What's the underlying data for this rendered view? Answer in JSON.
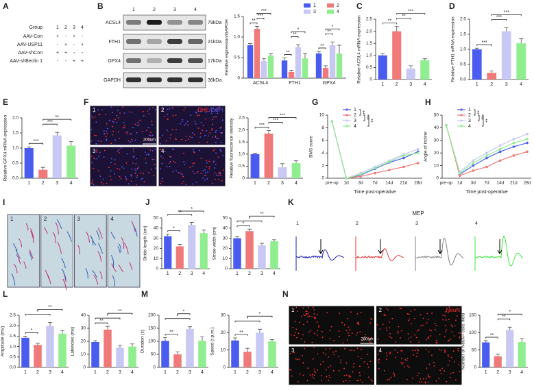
{
  "group_table": {
    "panel": "A",
    "header": [
      "Group",
      "1",
      "2",
      "3",
      "4"
    ],
    "rows": [
      [
        "AAV-Con",
        "+",
        "-",
        "+",
        "-"
      ],
      [
        "AAV-USP11",
        "-",
        "+",
        "-",
        "+"
      ],
      [
        "AAV-shCon",
        "+",
        "+",
        "-",
        "-"
      ],
      [
        "AAV-shBeclin 1",
        "-",
        "-",
        "+",
        "+"
      ]
    ]
  },
  "blot": {
    "panel": "B",
    "lanes": [
      "1",
      "2",
      "3",
      "4"
    ],
    "bands": [
      {
        "name": "ACSL4",
        "size": "79kDa"
      },
      {
        "name": "FTH1",
        "size": "21kDa"
      },
      {
        "name": "GPX4",
        "size": "17kDa"
      },
      {
        "name": "GAPDH",
        "size": "36kDa"
      }
    ]
  },
  "images": [
    {
      "panel": "F",
      "labels": [
        "1",
        "2",
        "3",
        "4"
      ],
      "stain": [
        {
          "text": "DHE",
          "color": "#ff3030"
        },
        {
          "text": "/DAPI",
          "color": "#5a5aff"
        }
      ],
      "scale": "200um",
      "background": "#1c1236",
      "style": "dots"
    },
    {
      "panel": "I",
      "labels": [
        "1",
        "2",
        "3",
        "4"
      ],
      "background": "#c9d9e2",
      "style": "strokes"
    },
    {
      "panel": "N",
      "labels": [
        "1",
        "2",
        "3",
        "4"
      ],
      "stain": [
        {
          "text": "NeuN",
          "color": "#ff3030"
        }
      ],
      "scale": "200um",
      "background": "#0d0d0d",
      "style": "dots"
    }
  ],
  "mep": {
    "panel": "K",
    "title": "MEP",
    "labels": [
      "1",
      "2",
      "3",
      "4"
    ],
    "colors": [
      "#1a1ab8",
      "#e83030",
      "#808080",
      "#3ce63c"
    ]
  },
  "chart_data": [
    {
      "type": "grouped_bar",
      "ylabel": "Relative expression/GAPDH",
      "categories": [
        "ACSL4",
        "FTH1",
        "GPX4"
      ],
      "series": [
        {
          "name": "1",
          "color": "#4a5cf0",
          "values": [
            0.8,
            0.43,
            0.6
          ],
          "errors": [
            0.04,
            0.06,
            0.05
          ]
        },
        {
          "name": "2",
          "color": "#f07a7a",
          "values": [
            1.2,
            0.15,
            0.25
          ],
          "errors": [
            0.06,
            0.04,
            0.05
          ]
        },
        {
          "name": "3",
          "color": "#c8c8f5",
          "values": [
            0.42,
            0.75,
            0.8
          ],
          "errors": [
            0.06,
            0.06,
            0.08
          ]
        },
        {
          "name": "4",
          "color": "#90ee90",
          "values": [
            0.55,
            0.48,
            0.6
          ],
          "errors": [
            0.04,
            0.12,
            0.2
          ]
        }
      ],
      "ylim": [
        0,
        1.5
      ],
      "yticks": [
        0,
        0.5,
        {
          "value": 1,
          "label": "1.0"
        },
        1.5
      ],
      "significance": [
        {
          "category": 0,
          "groups": [
            0,
            1
          ],
          "label": "**"
        },
        {
          "category": 0,
          "groups": [
            1,
            2
          ],
          "label": "***"
        },
        {
          "category": 0,
          "groups": [
            1,
            3
          ],
          "label": "***"
        },
        {
          "category": 1,
          "groups": [
            0,
            1
          ],
          "label": "**"
        },
        {
          "category": 1,
          "groups": [
            1,
            2
          ],
          "label": "**"
        },
        {
          "category": 1,
          "groups": [
            1,
            3
          ],
          "label": "*"
        },
        {
          "category": 2,
          "groups": [
            0,
            1
          ],
          "label": "**"
        },
        {
          "category": 2,
          "groups": [
            1,
            2
          ],
          "label": "**"
        },
        {
          "category": 2,
          "groups": [
            1,
            3
          ],
          "label": "*"
        }
      ]
    },
    {
      "type": "bar",
      "panel": "C",
      "ylabel": "Relative ACSL4 mRNA expression",
      "categories": [
        "1",
        "2",
        "3",
        "4"
      ],
      "values": [
        1.0,
        2.0,
        0.45,
        0.8
      ],
      "errors": [
        0.07,
        0.2,
        0.12,
        0.06
      ],
      "colors": [
        "#4a5cf0",
        "#f07a7a",
        "#c8c8f5",
        "#90ee90"
      ],
      "ylim": [
        0,
        2.5
      ],
      "yticks": [
        0,
        0.5,
        {
          "value": 1,
          "label": "1.0"
        },
        1.5,
        {
          "value": 2,
          "label": "2.0"
        },
        2.5
      ],
      "significance": [
        {
          "groups": [
            0,
            1
          ],
          "label": "**"
        },
        {
          "groups": [
            1,
            2
          ],
          "label": "**"
        },
        {
          "groups": [
            1,
            3
          ],
          "label": "***"
        }
      ]
    },
    {
      "type": "bar",
      "panel": "D",
      "ylabel": "Relative FTH1 mRNA expression",
      "categories": [
        "1",
        "2",
        "3",
        "4"
      ],
      "values": [
        1.0,
        0.22,
        1.6,
        1.2
      ],
      "errors": [
        0.04,
        0.06,
        0.12,
        0.15
      ],
      "colors": [
        "#4a5cf0",
        "#f07a7a",
        "#c8c8f5",
        "#90ee90"
      ],
      "ylim": [
        0,
        2
      ],
      "yticks": [
        {
          "value": 0,
          "label": "0.0"
        },
        0.5,
        {
          "value": 1,
          "label": "1.0"
        },
        1.5,
        {
          "value": 2,
          "label": "2.0"
        }
      ],
      "significance": [
        {
          "groups": [
            0,
            1
          ],
          "label": "***"
        },
        {
          "groups": [
            1,
            2
          ],
          "label": "***"
        },
        {
          "groups": [
            1,
            3
          ],
          "label": "***"
        }
      ]
    },
    {
      "type": "bar",
      "panel": "E",
      "ylabel": "Relative GPX4 mRNA expression",
      "categories": [
        "1",
        "2",
        "3",
        "4"
      ],
      "values": [
        1.0,
        0.28,
        1.42,
        1.08
      ],
      "errors": [
        0.04,
        0.08,
        0.1,
        0.14
      ],
      "colors": [
        "#4a5cf0",
        "#f07a7a",
        "#c8c8f5",
        "#90ee90"
      ],
      "ylim": [
        0,
        2
      ],
      "yticks": [
        {
          "value": 0,
          "label": "0.0"
        },
        0.5,
        {
          "value": 1,
          "label": "1.0"
        },
        1.5,
        {
          "value": 2,
          "label": "2.0"
        }
      ],
      "significance": [
        {
          "groups": [
            0,
            1
          ],
          "label": "***"
        },
        {
          "groups": [
            1,
            2
          ],
          "label": "***"
        },
        {
          "groups": [
            1,
            3
          ],
          "label": "**"
        }
      ]
    },
    {
      "type": "bar",
      "ylabel": "Relative fluorescence intensity",
      "categories": [
        "1",
        "2",
        "3",
        "4"
      ],
      "values": [
        1.0,
        1.85,
        0.45,
        0.62
      ],
      "errors": [
        0.04,
        0.12,
        0.15,
        0.1
      ],
      "colors": [
        "#4a5cf0",
        "#f07a7a",
        "#c8c8f5",
        "#90ee90"
      ],
      "ylim": [
        0,
        2.5
      ],
      "yticks": [
        0,
        0.5,
        {
          "value": 1,
          "label": "1.0"
        },
        1.5,
        {
          "value": 2,
          "label": "2.0"
        },
        2.5
      ],
      "significance": [
        {
          "groups": [
            0,
            1
          ],
          "label": "***"
        },
        {
          "groups": [
            1,
            2
          ],
          "label": "***"
        },
        {
          "groups": [
            1,
            3
          ],
          "label": "***"
        }
      ]
    },
    {
      "type": "line",
      "panel": "G",
      "ylabel": "BMS score",
      "xlabel": "Time post-operative",
      "categories": [
        "pre-op",
        "1d",
        "3d",
        "7d",
        "14d",
        "21d",
        "28d"
      ],
      "series": [
        {
          "name": "1",
          "color": "#4a5cf0",
          "values": [
            9,
            0,
            0.5,
            1.5,
            2.5,
            3.2,
            4.2
          ]
        },
        {
          "name": "2",
          "color": "#f07a7a",
          "values": [
            9,
            0,
            0.3,
            0.8,
            1.3,
            1.8,
            2.4
          ]
        },
        {
          "name": "3",
          "color": "#c8c8f5",
          "values": [
            9,
            0,
            0.8,
            1.8,
            2.8,
            3.8,
            4.6
          ]
        },
        {
          "name": "4",
          "color": "#90ee90",
          "values": [
            9,
            0,
            0.6,
            1.6,
            2.6,
            3.6,
            4.0
          ]
        }
      ],
      "ylim": [
        0,
        10
      ],
      "yticks": [
        0,
        2,
        4,
        6,
        8,
        10
      ],
      "significance": [
        {
          "series": [
            0,
            1
          ],
          "label": "**"
        },
        {
          "series": [
            1,
            2
          ],
          "label": "**"
        },
        {
          "series": [
            1,
            3
          ],
          "label": "**"
        }
      ]
    },
    {
      "type": "line",
      "panel": "H",
      "ylabel": "Angle of incline",
      "xlabel": "Time post-operative",
      "categories": [
        "pre-op",
        "1d",
        "3d",
        "7d",
        "14d",
        "21d",
        "28d"
      ],
      "series": [
        {
          "name": "1",
          "color": "#4a5cf0",
          "values": [
            42,
            3,
            10,
            16,
            21,
            25,
            28
          ]
        },
        {
          "name": "2",
          "color": "#f07a7a",
          "values": [
            42,
            2,
            6,
            9,
            14,
            18,
            21
          ]
        },
        {
          "name": "3",
          "color": "#c8c8f5",
          "values": [
            42,
            5,
            14,
            20,
            26,
            31,
            35
          ]
        },
        {
          "name": "4",
          "color": "#90ee90",
          "values": [
            42,
            4,
            12,
            18,
            23,
            28,
            31
          ]
        }
      ],
      "ylim": [
        0,
        50
      ],
      "yticks": [
        0,
        10,
        20,
        30,
        40,
        50
      ],
      "significance": [
        {
          "series": [
            0,
            1
          ],
          "label": "**"
        },
        {
          "series": [
            1,
            2
          ],
          "label": "**"
        },
        {
          "series": [
            1,
            3
          ],
          "label": "**"
        }
      ]
    },
    {
      "type": "bar",
      "panel": "J",
      "ylabel": "Stride length (cm)",
      "categories": [
        "1",
        "2",
        "3",
        "4"
      ],
      "values": [
        32,
        22,
        43,
        35
      ],
      "errors": [
        2,
        2,
        2.5,
        3
      ],
      "colors": [
        "#4a5cf0",
        "#f07a7a",
        "#c8c8f5",
        "#90ee90"
      ],
      "ylim": [
        0,
        50
      ],
      "yticks": [
        0,
        10,
        20,
        30,
        40,
        50
      ],
      "significance": [
        {
          "groups": [
            0,
            1
          ],
          "label": "*"
        },
        {
          "groups": [
            0,
            2
          ],
          "label": "**"
        },
        {
          "groups": [
            1,
            3
          ],
          "label": "*"
        }
      ]
    },
    {
      "type": "bar",
      "ylabel": "Stride width (cm)",
      "categories": [
        "1",
        "2",
        "3",
        "4"
      ],
      "values": [
        30,
        37,
        23,
        27
      ],
      "errors": [
        1.5,
        2,
        2,
        1.5
      ],
      "colors": [
        "#4a5cf0",
        "#f07a7a",
        "#c8c8f5",
        "#90ee90"
      ],
      "ylim": [
        0,
        50
      ],
      "yticks": [
        0,
        10,
        20,
        30,
        40,
        50
      ],
      "significance": [
        {
          "groups": [
            0,
            1
          ],
          "label": "*"
        },
        {
          "groups": [
            0,
            2
          ],
          "label": "*"
        },
        {
          "groups": [
            1,
            3
          ],
          "label": "**"
        }
      ]
    },
    {
      "type": "bar",
      "panel": "L",
      "ylabel": "Amplitude (mV)",
      "categories": [
        "1",
        "2",
        "3",
        "4"
      ],
      "values": [
        1.42,
        1.08,
        1.98,
        1.62
      ],
      "errors": [
        0.08,
        0.08,
        0.18,
        0.15
      ],
      "colors": [
        "#4a5cf0",
        "#f07a7a",
        "#c8c8f5",
        "#90ee90"
      ],
      "ylim": [
        0,
        2.5
      ],
      "yticks": [
        {
          "value": 0,
          "label": "0.0"
        },
        0.5,
        {
          "value": 1,
          "label": "1.0"
        },
        1.5,
        {
          "value": 2,
          "label": "2.0"
        },
        2.5
      ],
      "significance": [
        {
          "groups": [
            0,
            1
          ],
          "label": "*"
        },
        {
          "groups": [
            0,
            2
          ],
          "label": "*"
        },
        {
          "groups": [
            1,
            3
          ],
          "label": "**"
        }
      ]
    },
    {
      "type": "bar",
      "ylabel": "Latencies (ms)",
      "categories": [
        "1",
        "2",
        "3",
        "4"
      ],
      "values": [
        19.5,
        29,
        15,
        16
      ],
      "errors": [
        1,
        2.5,
        2,
        2
      ],
      "colors": [
        "#4a5cf0",
        "#f07a7a",
        "#c8c8f5",
        "#90ee90"
      ],
      "ylim": [
        0,
        40
      ],
      "yticks": [
        0,
        10,
        20,
        30,
        40
      ],
      "significance": [
        {
          "groups": [
            0,
            1
          ],
          "label": "**"
        },
        {
          "groups": [
            0,
            2
          ],
          "label": "*"
        },
        {
          "groups": [
            1,
            3
          ],
          "label": "**"
        }
      ]
    },
    {
      "type": "bar",
      "panel": "M",
      "ylabel": "Duration (s)",
      "categories": [
        "1",
        "2",
        "3",
        "4"
      ],
      "values": [
        102,
        50,
        148,
        102
      ],
      "errors": [
        12,
        10,
        8,
        15
      ],
      "colors": [
        "#4a5cf0",
        "#f07a7a",
        "#c8c8f5",
        "#90ee90"
      ],
      "ylim": [
        0,
        200
      ],
      "yticks": [
        0,
        50,
        100,
        150,
        200
      ],
      "significance": [
        {
          "groups": [
            0,
            1
          ],
          "label": "**"
        },
        {
          "groups": [
            0,
            2
          ],
          "label": "*"
        },
        {
          "groups": [
            1,
            2
          ],
          "label": "*"
        }
      ]
    },
    {
      "type": "bar",
      "ylabel": "Speed (r.p.m.)",
      "categories": [
        "1",
        "2",
        "3",
        "4"
      ],
      "values": [
        15.5,
        9,
        20,
        15
      ],
      "errors": [
        1.5,
        2,
        2,
        1
      ],
      "colors": [
        "#4a5cf0",
        "#f07a7a",
        "#c8c8f5",
        "#90ee90"
      ],
      "ylim": [
        0,
        30
      ],
      "yticks": [
        0,
        10,
        20,
        30
      ],
      "significance": [
        {
          "groups": [
            0,
            1
          ],
          "label": "**"
        },
        {
          "groups": [
            0,
            2
          ],
          "label": "*"
        },
        {
          "groups": [
            1,
            3
          ],
          "label": "*"
        }
      ]
    },
    {
      "type": "bar",
      "ylabel": "Number of NeuN+ cells /field",
      "categories": [
        "1",
        "2",
        "3",
        "4"
      ],
      "values": [
        72,
        32,
        108,
        73
      ],
      "errors": [
        5,
        6,
        8,
        10
      ],
      "colors": [
        "#4a5cf0",
        "#f07a7a",
        "#c8c8f5",
        "#90ee90"
      ],
      "ylim": [
        0,
        150
      ],
      "yticks": [
        0,
        50,
        100,
        150
      ],
      "significance": [
        {
          "groups": [
            0,
            1
          ],
          "label": "**"
        },
        {
          "groups": [
            1,
            2
          ],
          "label": "**"
        },
        {
          "groups": [
            1,
            3
          ],
          "label": "*"
        }
      ]
    }
  ]
}
